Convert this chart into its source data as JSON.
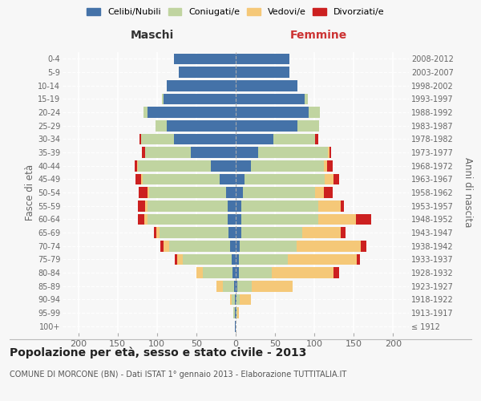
{
  "age_groups": [
    "100+",
    "95-99",
    "90-94",
    "85-89",
    "80-84",
    "75-79",
    "70-74",
    "65-69",
    "60-64",
    "55-59",
    "50-54",
    "45-49",
    "40-44",
    "35-39",
    "30-34",
    "25-29",
    "20-24",
    "15-19",
    "10-14",
    "5-9",
    "0-4"
  ],
  "birth_years": [
    "≤ 1912",
    "1913-1917",
    "1918-1922",
    "1923-1927",
    "1928-1932",
    "1933-1937",
    "1938-1942",
    "1943-1947",
    "1948-1952",
    "1953-1957",
    "1958-1962",
    "1963-1967",
    "1968-1972",
    "1973-1977",
    "1978-1982",
    "1983-1987",
    "1988-1992",
    "1993-1997",
    "1998-2002",
    "2003-2007",
    "2008-2012"
  ],
  "colors": {
    "celibi": "#4472a8",
    "coniugati": "#c0d4a0",
    "vedovi": "#f5c878",
    "divorziati": "#cc2020"
  },
  "males_celibi": [
    1,
    1,
    1,
    2,
    4,
    5,
    7,
    9,
    10,
    10,
    12,
    20,
    32,
    57,
    78,
    88,
    112,
    92,
    88,
    72,
    78
  ],
  "males_coniugati": [
    0,
    2,
    4,
    14,
    38,
    62,
    78,
    88,
    102,
    102,
    98,
    98,
    92,
    58,
    42,
    14,
    5,
    2,
    0,
    0,
    0
  ],
  "males_vedovi": [
    0,
    0,
    2,
    8,
    8,
    7,
    7,
    4,
    4,
    3,
    2,
    2,
    1,
    0,
    0,
    0,
    0,
    0,
    0,
    0,
    0
  ],
  "males_divorziati": [
    0,
    0,
    0,
    0,
    0,
    3,
    4,
    3,
    8,
    9,
    11,
    7,
    3,
    4,
    2,
    0,
    0,
    0,
    0,
    0,
    0
  ],
  "females_nubili": [
    0,
    1,
    1,
    2,
    4,
    4,
    5,
    7,
    7,
    7,
    9,
    11,
    19,
    29,
    48,
    78,
    93,
    88,
    78,
    68,
    68
  ],
  "females_coniugate": [
    0,
    1,
    4,
    18,
    42,
    62,
    72,
    78,
    98,
    98,
    92,
    102,
    93,
    88,
    53,
    28,
    14,
    4,
    0,
    0,
    0
  ],
  "females_vedove": [
    0,
    2,
    14,
    52,
    78,
    88,
    82,
    48,
    48,
    28,
    11,
    11,
    4,
    2,
    0,
    0,
    0,
    0,
    0,
    0,
    0
  ],
  "females_divorziate": [
    0,
    0,
    0,
    0,
    7,
    4,
    7,
    7,
    19,
    4,
    11,
    7,
    7,
    2,
    4,
    0,
    0,
    0,
    0,
    0,
    0
  ],
  "xlim": 220,
  "title": "Popolazione per età, sesso e stato civile - 2013",
  "subtitle": "COMUNE DI MORCONE (BN) - Dati ISTAT 1° gennaio 2013 - Elaborazione TUTTITALIA.IT",
  "ylabel_left": "Fasce di età",
  "ylabel_right": "Anni di nascita",
  "xlabel_left": "Maschi",
  "xlabel_right": "Femmine",
  "legend_labels": [
    "Celibi/Nubili",
    "Coniugati/e",
    "Vedovi/e",
    "Divorziati/e"
  ],
  "bg_color": "#f7f7f7"
}
